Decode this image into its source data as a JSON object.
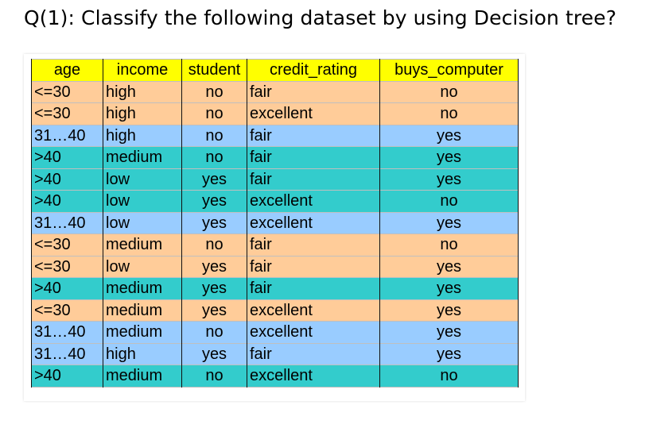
{
  "question": "Q(1): Classify the following dataset by using  Decision tree?",
  "colors": {
    "header": "#ffff00",
    "orange": "#ffcc99",
    "blue": "#99ccff",
    "teal": "#33cccc"
  },
  "table": {
    "headers": [
      "age",
      "income",
      "student",
      "credit_rating",
      "buys_computer"
    ],
    "rows": [
      {
        "age": "<=30",
        "income": "high",
        "student": "no",
        "credit_rating": "fair",
        "buys_computer": "no",
        "color": "orange"
      },
      {
        "age": "<=30",
        "income": "high",
        "student": "no",
        "credit_rating": "excellent",
        "buys_computer": "no",
        "color": "orange"
      },
      {
        "age": "31…40",
        "income": "high",
        "student": "no",
        "credit_rating": "fair",
        "buys_computer": "yes",
        "color": "blue"
      },
      {
        "age": ">40",
        "income": "medium",
        "student": "no",
        "credit_rating": "fair",
        "buys_computer": "yes",
        "color": "teal"
      },
      {
        "age": ">40",
        "income": "low",
        "student": "yes",
        "credit_rating": "fair",
        "buys_computer": "yes",
        "color": "teal"
      },
      {
        "age": ">40",
        "income": "low",
        "student": "yes",
        "credit_rating": "excellent",
        "buys_computer": "no",
        "color": "teal"
      },
      {
        "age": "31…40",
        "income": "low",
        "student": "yes",
        "credit_rating": "excellent",
        "buys_computer": "yes",
        "color": "blue"
      },
      {
        "age": "<=30",
        "income": "medium",
        "student": "no",
        "credit_rating": "fair",
        "buys_computer": "no",
        "color": "orange"
      },
      {
        "age": "<=30",
        "income": "low",
        "student": "yes",
        "credit_rating": "fair",
        "buys_computer": "yes",
        "color": "orange"
      },
      {
        "age": ">40",
        "income": "medium",
        "student": "yes",
        "credit_rating": "fair",
        "buys_computer": "yes",
        "color": "teal"
      },
      {
        "age": "<=30",
        "income": "medium",
        "student": "yes",
        "credit_rating": "excellent",
        "buys_computer": "yes",
        "color": "orange"
      },
      {
        "age": "31…40",
        "income": "medium",
        "student": "no",
        "credit_rating": "excellent",
        "buys_computer": "yes",
        "color": "blue"
      },
      {
        "age": "31…40",
        "income": "high",
        "student": "yes",
        "credit_rating": "fair",
        "buys_computer": "yes",
        "color": "blue"
      },
      {
        "age": ">40",
        "income": "medium",
        "student": "no",
        "credit_rating": "excellent",
        "buys_computer": "no",
        "color": "teal"
      }
    ]
  }
}
